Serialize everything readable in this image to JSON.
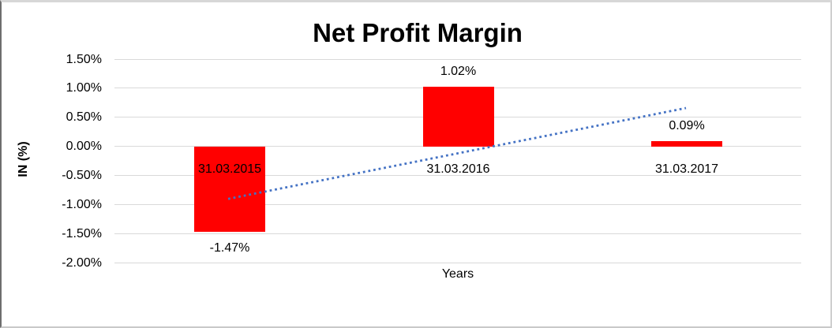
{
  "chart_data": {
    "type": "bar",
    "title": "Net Profit Margin",
    "xlabel": "Years",
    "ylabel": "IN (%)",
    "categories": [
      "31.03.2015",
      "31.03.2016",
      "31.03.2017"
    ],
    "values": [
      -1.47,
      1.02,
      0.09
    ],
    "data_labels": [
      "-1.47%",
      "1.02%",
      "0.09%"
    ],
    "y_tick_labels": [
      "1.50%",
      "1.00%",
      "0.50%",
      "0.00%",
      "-0.50%",
      "-1.00%",
      "-1.50%",
      "-2.00%"
    ],
    "y_tick_values": [
      1.5,
      1.0,
      0.5,
      0.0,
      -0.5,
      -1.0,
      -1.5,
      -2.0
    ],
    "ylim": [
      -2.0,
      1.5
    ],
    "grid": true,
    "legend": "none",
    "bar_color": "#FF0000",
    "text_color": "#000000",
    "gridline_color": "#D9D9D9",
    "trendline": {
      "type": "linear",
      "style": "dotted",
      "color": "#4472C4",
      "start_value": -0.9,
      "end_value": 0.66
    }
  }
}
